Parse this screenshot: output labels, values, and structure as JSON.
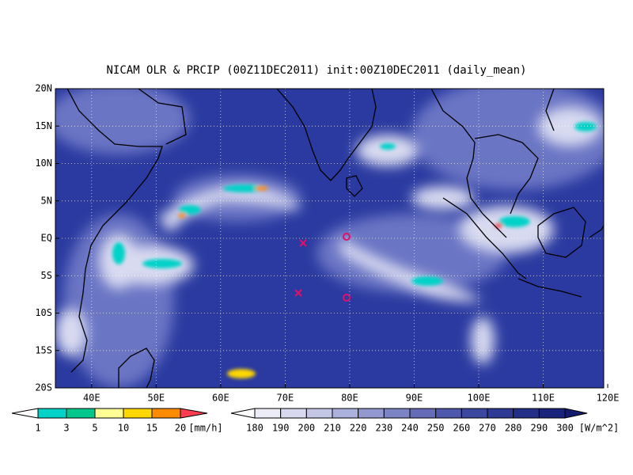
{
  "title": "NICAM OLR & PRCIP (00Z11DEC2011) init:00Z10DEC2011 (daily_mean)",
  "map": {
    "lat_labels": [
      "20N",
      "15N",
      "10N",
      "5N",
      "EQ",
      "5S",
      "10S",
      "15S",
      "20S"
    ],
    "lon_labels": [
      "40E",
      "50E",
      "60E",
      "70E",
      "80E",
      "90E",
      "100E",
      "110E",
      "120E"
    ]
  },
  "precip_colorbar": {
    "labels": [
      1,
      3,
      5,
      10,
      15,
      20
    ],
    "unit": "[mm/h]"
  },
  "olr_colorbar": {
    "labels": [
      180,
      190,
      200,
      210,
      220,
      230,
      240,
      250,
      260,
      270,
      280,
      290,
      300
    ],
    "unit": "[W/m^2]"
  }
}
